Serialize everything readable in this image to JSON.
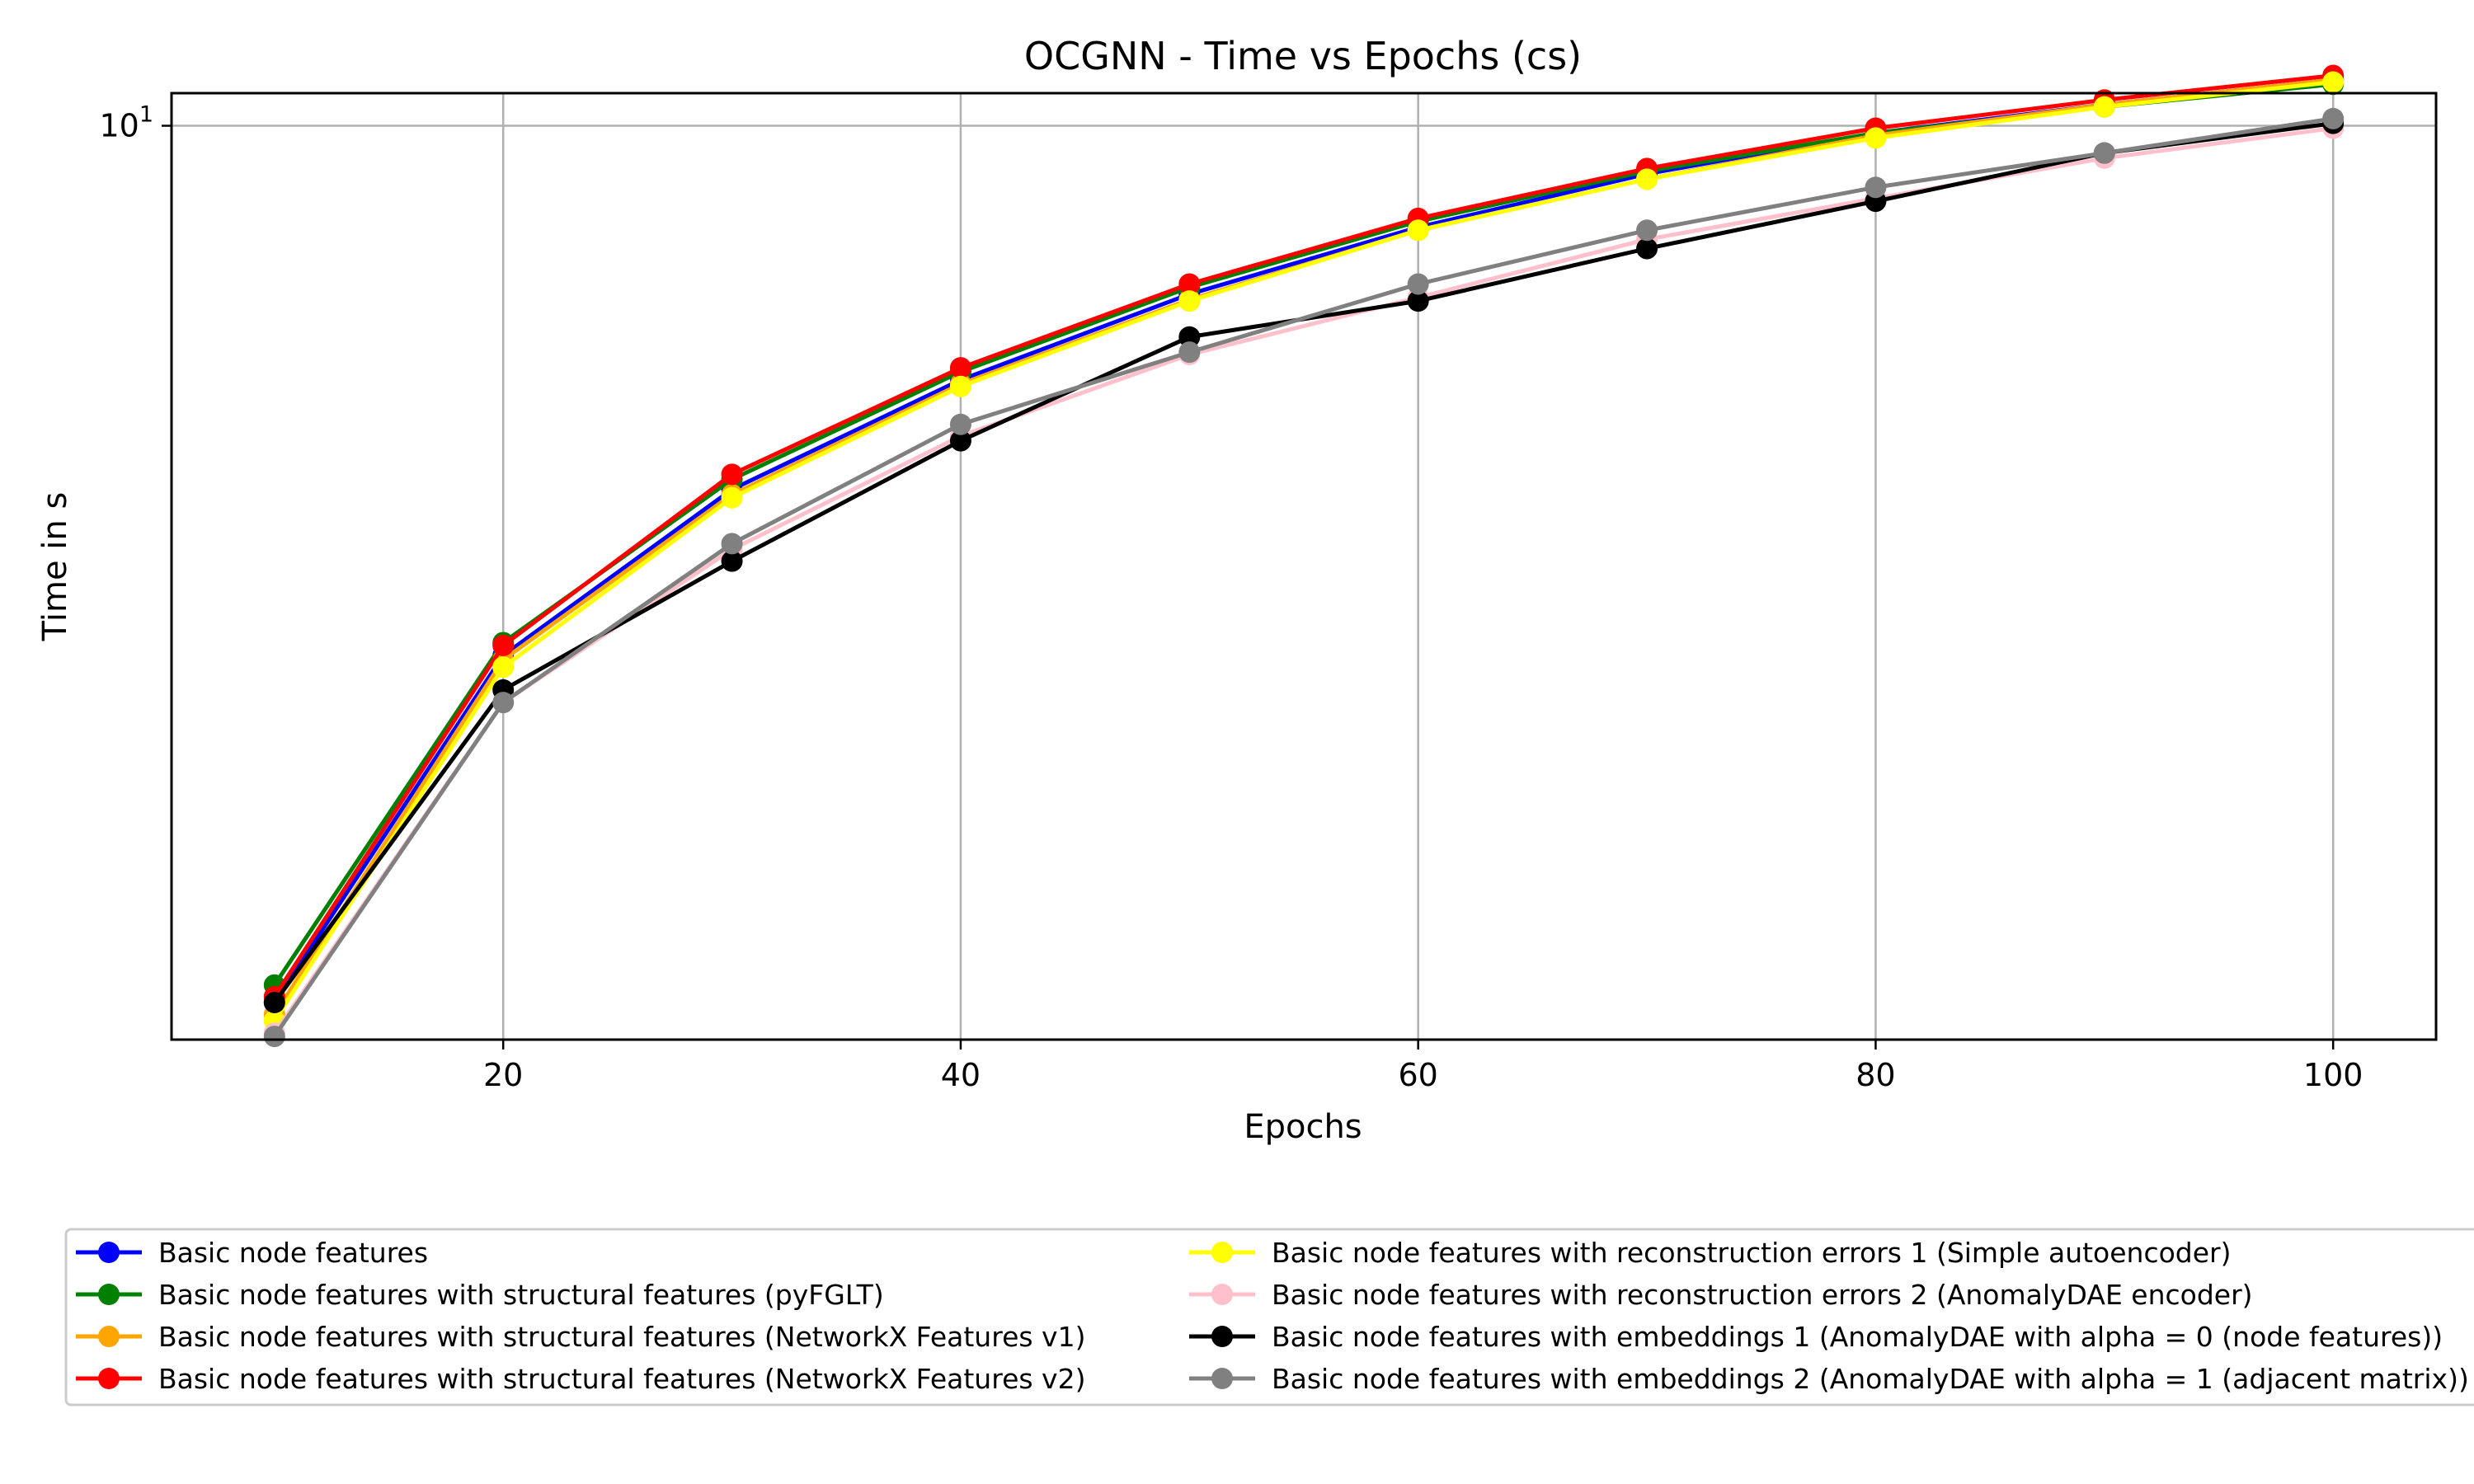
{
  "chart_data": {
    "type": "line",
    "title": "OCGNN - Time vs Epochs (cs)",
    "xlabel": "Epochs",
    "ylabel": "Time in s",
    "yscale": "log",
    "xlim": [
      5.5,
      104.5
    ],
    "ylim": [
      1.5,
      10.7
    ],
    "x_ticks": [
      20,
      40,
      60,
      80,
      100
    ],
    "y_ticks": [
      {
        "value": 10,
        "base": "10",
        "exp": "1"
      }
    ],
    "grid": true,
    "legend_placement": "below-plot",
    "x": [
      10,
      20,
      30,
      40,
      50,
      60,
      70,
      80,
      90,
      100
    ],
    "series": [
      {
        "name": "Basic node features",
        "color": "#0000ff",
        "values": [
          1.62,
          3.33,
          4.7,
          5.9,
          7.05,
          8.1,
          9.05,
          9.85,
          10.45,
          11.0
        ]
      },
      {
        "name": "Basic node features with structural features (pyFGLT)",
        "color": "#008000",
        "values": [
          1.68,
          3.42,
          4.8,
          6.0,
          7.15,
          8.2,
          9.1,
          9.85,
          10.4,
          10.9
        ]
      },
      {
        "name": "Basic node features with structural features (NetworkX Features v1)",
        "color": "#ffa500",
        "values": [
          1.58,
          3.3,
          4.65,
          5.85,
          6.97,
          8.05,
          8.95,
          9.8,
          10.45,
          11.0
        ]
      },
      {
        "name": "Basic node features with structural features (NetworkX Features v2)",
        "color": "#ff0000",
        "values": [
          1.64,
          3.4,
          4.85,
          6.05,
          7.2,
          8.25,
          9.15,
          9.95,
          10.55,
          11.1
        ]
      },
      {
        "name": "Basic node features with reconstruction errors 1 (Simple autoencoder)",
        "color": "#ffff00",
        "values": [
          1.56,
          3.25,
          4.62,
          5.82,
          6.95,
          8.05,
          8.95,
          9.75,
          10.4,
          10.95
        ]
      },
      {
        "name": "Basic node features with reconstruction errors 2 (AnomalyDAE encoder)",
        "color": "#ffc0cb",
        "values": [
          1.52,
          3.02,
          4.15,
          5.25,
          6.22,
          7.0,
          7.9,
          8.6,
          9.35,
          9.95
        ]
      },
      {
        "name": "Basic node features with embeddings 1 (AnomalyDAE with alpha = 0 (node features))",
        "color": "#000000",
        "values": [
          1.62,
          3.1,
          4.05,
          5.2,
          6.45,
          6.95,
          7.75,
          8.55,
          9.45,
          10.05
        ]
      },
      {
        "name": "Basic node features with embeddings 2 (AnomalyDAE with alpha = 1 (adjacent matrix))",
        "color": "#808080",
        "values": [
          1.51,
          3.02,
          4.2,
          5.38,
          6.25,
          7.2,
          8.05,
          8.8,
          9.45,
          10.15
        ]
      }
    ]
  }
}
